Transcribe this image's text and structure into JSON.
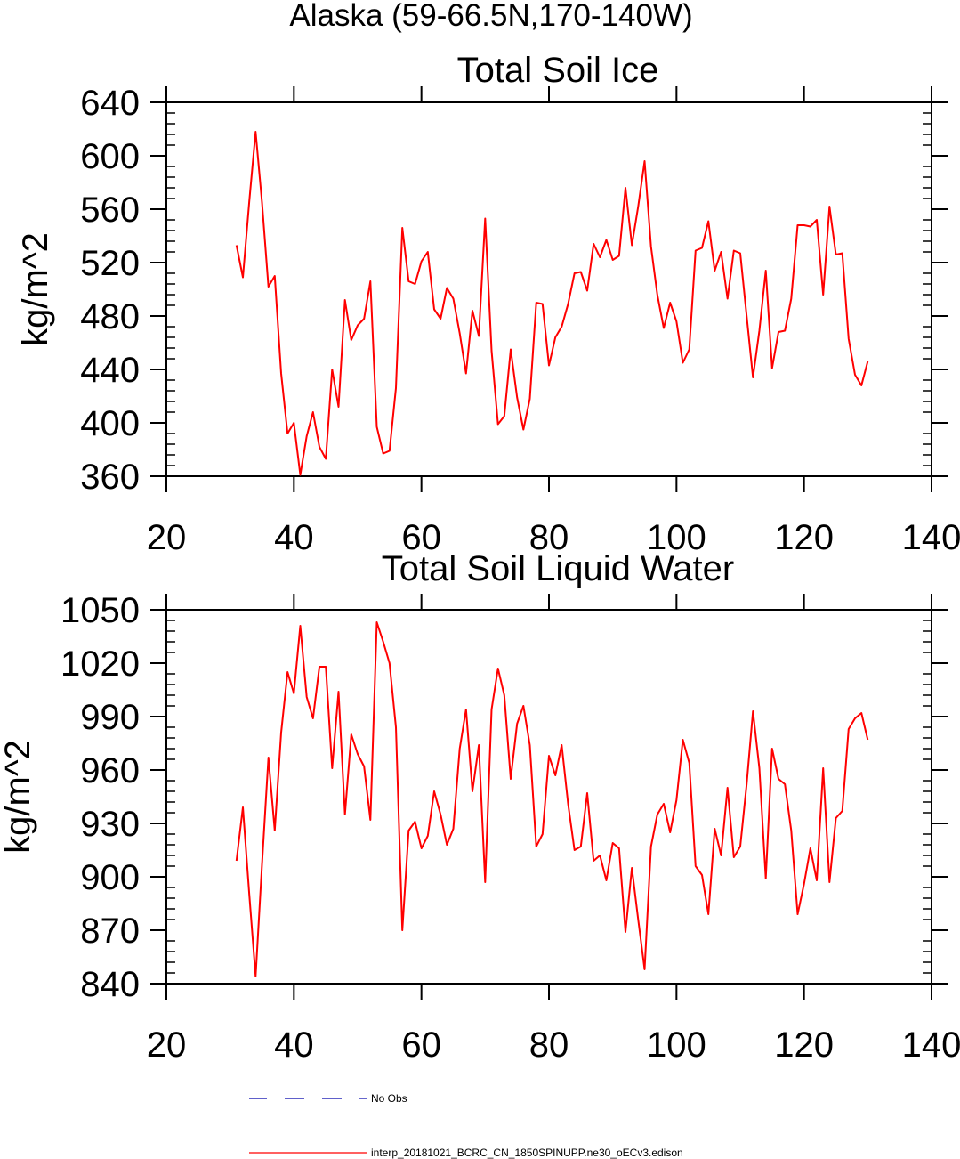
{
  "figure_title": "Alaska (59-66.5N,170-140W)",
  "legend": {
    "obs_label": "No Obs",
    "obs_color": "#0000aa",
    "model_label": "interp_20181021_BCRC_CN_1850SPINUPP.ne30_oECv3.edison",
    "model_color": "#ff0000"
  },
  "chart_data": [
    {
      "type": "line",
      "title": "Total Soil Ice",
      "xlabel": "",
      "ylabel": "kg/m^2",
      "xlim": [
        20,
        140
      ],
      "ylim": [
        360,
        640
      ],
      "xticks": [
        20,
        40,
        60,
        80,
        100,
        120,
        140
      ],
      "yticks": [
        360,
        400,
        440,
        480,
        520,
        560,
        600,
        640
      ],
      "series": [
        {
          "name": "interp_20181021_BCRC_CN_1850SPINUPP.ne30_oECv3.edison",
          "color": "#ff0000",
          "x": [
            31,
            32,
            33,
            34,
            35,
            36,
            37,
            38,
            39,
            40,
            41,
            42,
            43,
            44,
            45,
            46,
            47,
            48,
            49,
            50,
            51,
            52,
            53,
            54,
            55,
            56,
            57,
            58,
            59,
            60,
            61,
            62,
            63,
            64,
            65,
            66,
            67,
            68,
            69,
            70,
            71,
            72,
            73,
            74,
            75,
            76,
            77,
            78,
            79,
            80,
            81,
            82,
            83,
            84,
            85,
            86,
            87,
            88,
            89,
            90,
            91,
            92,
            93,
            94,
            95,
            96,
            97,
            98,
            99,
            100,
            101,
            102,
            103,
            104,
            105,
            106,
            107,
            108,
            109,
            110,
            111,
            112,
            113,
            114,
            115,
            116,
            117,
            118,
            119,
            120,
            121,
            122,
            123,
            124,
            125,
            126,
            127,
            128,
            129,
            130
          ],
          "values": [
            533,
            509,
            566,
            618,
            565,
            502,
            510,
            437,
            392,
            400,
            361,
            390,
            408,
            382,
            373,
            440,
            412,
            492,
            462,
            473,
            478,
            506,
            397,
            377,
            379,
            426,
            546,
            506,
            504,
            521,
            528,
            485,
            478,
            501,
            493,
            467,
            437,
            484,
            465,
            553,
            454,
            399,
            405,
            455,
            419,
            395,
            418,
            490,
            489,
            443,
            464,
            472,
            489,
            512,
            513,
            499,
            534,
            524,
            537,
            522,
            525,
            576,
            533,
            562,
            596,
            532,
            496,
            471,
            490,
            476,
            445,
            455,
            529,
            531,
            551,
            514,
            528,
            493,
            529,
            527,
            480,
            434,
            469,
            514,
            441,
            468,
            469,
            493,
            548,
            548,
            547,
            552,
            496,
            562,
            526,
            527,
            463,
            436,
            428,
            446
          ]
        }
      ]
    },
    {
      "type": "line",
      "title": "Total Soil Liquid Water",
      "xlabel": "",
      "ylabel": "kg/m^2",
      "xlim": [
        20,
        140
      ],
      "ylim": [
        840,
        1050
      ],
      "xticks": [
        20,
        40,
        60,
        80,
        100,
        120,
        140
      ],
      "yticks": [
        840,
        870,
        900,
        930,
        960,
        990,
        1020,
        1050
      ],
      "series": [
        {
          "name": "interp_20181021_BCRC_CN_1850SPINUPP.ne30_oECv3.edison",
          "color": "#ff0000",
          "x": [
            31,
            32,
            33,
            34,
            35,
            36,
            37,
            38,
            39,
            40,
            41,
            42,
            43,
            44,
            45,
            46,
            47,
            48,
            49,
            50,
            51,
            52,
            53,
            54,
            55,
            56,
            57,
            58,
            59,
            60,
            61,
            62,
            63,
            64,
            65,
            66,
            67,
            68,
            69,
            70,
            71,
            72,
            73,
            74,
            75,
            76,
            77,
            78,
            79,
            80,
            81,
            82,
            83,
            84,
            85,
            86,
            87,
            88,
            89,
            90,
            91,
            92,
            93,
            94,
            95,
            96,
            97,
            98,
            99,
            100,
            101,
            102,
            103,
            104,
            105,
            106,
            107,
            108,
            109,
            110,
            111,
            112,
            113,
            114,
            115,
            116,
            117,
            118,
            119,
            120,
            121,
            122,
            123,
            124,
            125,
            126,
            127,
            128,
            129,
            130
          ],
          "values": [
            909,
            939,
            890,
            844,
            907,
            967,
            926,
            981,
            1015,
            1003,
            1041,
            1001,
            989,
            1018,
            1018,
            961,
            1004,
            935,
            980,
            969,
            962,
            932,
            1043,
            1032,
            1020,
            984,
            870,
            926,
            931,
            916,
            923,
            948,
            935,
            918,
            927,
            972,
            994,
            948,
            974,
            897,
            994,
            1017,
            1002,
            955,
            986,
            996,
            974,
            917,
            924,
            968,
            957,
            974,
            941,
            915,
            917,
            947,
            909,
            912,
            898,
            919,
            916,
            869,
            905,
            876,
            848,
            917,
            935,
            941,
            925,
            943,
            977,
            964,
            906,
            901,
            879,
            927,
            912,
            950,
            911,
            917,
            952,
            993,
            961,
            899,
            972,
            955,
            952,
            926,
            879,
            896,
            916,
            898,
            961,
            897,
            933,
            937,
            983,
            989,
            992,
            977
          ]
        }
      ]
    }
  ]
}
